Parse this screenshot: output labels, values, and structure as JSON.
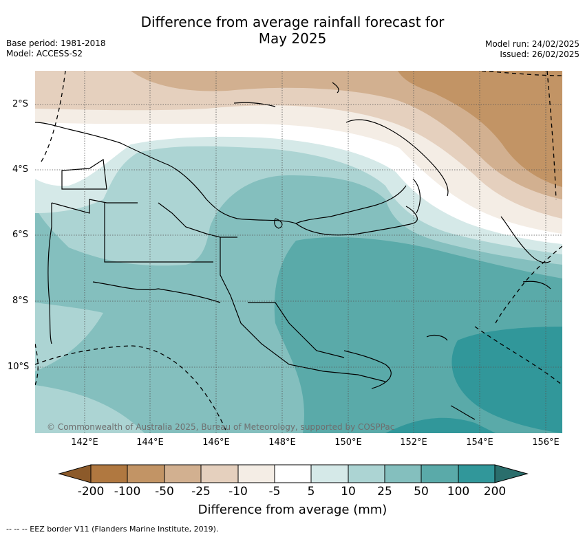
{
  "title_line1": "Difference from average rainfall forecast for",
  "title_line2": "May 2025",
  "meta": {
    "base_period": "Base period: 1981-2018",
    "model": "Model: ACCESS-S2",
    "model_run": "Model run: 24/02/2025",
    "issued": "Issued: 26/02/2025"
  },
  "axes": {
    "lat_ticks": [
      "2°S",
      "4°S",
      "6°S",
      "8°S",
      "10°S"
    ],
    "lon_ticks": [
      "142°E",
      "144°E",
      "146°E",
      "148°E",
      "150°E",
      "152°E",
      "154°E",
      "156°E"
    ]
  },
  "colorbar": {
    "title": "Difference from average (mm)",
    "labels": [
      "-200",
      "-100",
      "-50",
      "-25",
      "-10",
      "-5",
      "5",
      "10",
      "25",
      "50",
      "100",
      "200"
    ],
    "colors": {
      "lt_neg200": "#8c5a2a",
      "neg200_neg100": "#b07840",
      "neg100_neg50": "#c29465",
      "neg50_neg25": "#d2b090",
      "neg25_neg10": "#e5d0be",
      "neg10_neg5": "#f4ede5",
      "neg5_5": "#ffffff",
      "5_10": "#d5e9e8",
      "10_25": "#acd4d3",
      "25_50": "#84bfbe",
      "50_100": "#5aaaa9",
      "100_200": "#31979a",
      "gt_200": "#2a6e6c"
    }
  },
  "copyright": "© Commonwealth of Australia 2025, Bureau of Meteorology, supported by COSPPac",
  "footnote": "-- -- -- EEZ border V11 (Flanders Marine Institute, 2019)."
}
